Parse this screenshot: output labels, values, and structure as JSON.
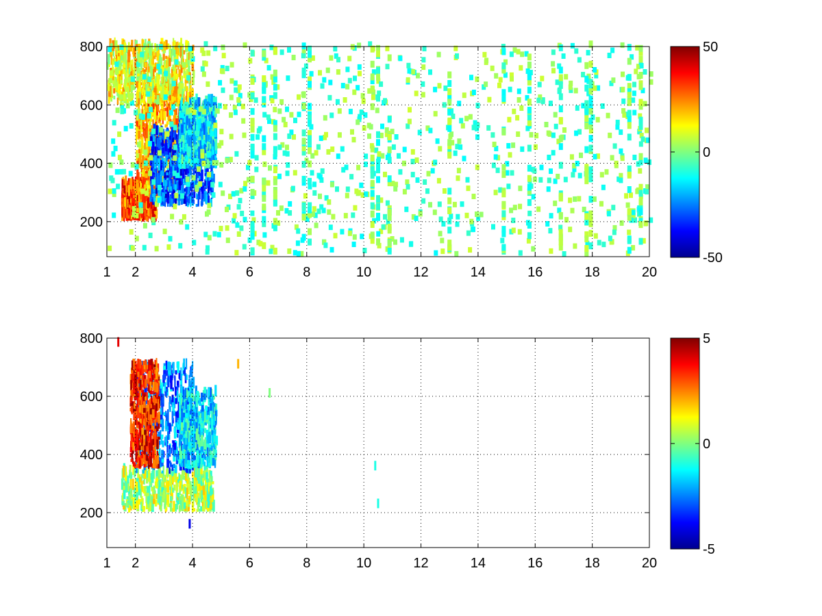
{
  "chart_data": [
    {
      "type": "heatmap",
      "title": "",
      "xlabel": "",
      "ylabel": "",
      "xlim": [
        1,
        20
      ],
      "ylim": [
        80,
        800
      ],
      "x_ticks": [
        1,
        2,
        4,
        6,
        8,
        10,
        12,
        14,
        16,
        18,
        20
      ],
      "y_ticks": [
        200,
        400,
        600,
        800
      ],
      "grid": true,
      "colormap": "jet",
      "colorbar": {
        "range": [
          -50,
          50
        ],
        "ticks": [
          50,
          0,
          -50
        ]
      },
      "description_regions": [
        {
          "x": [
            1.5,
            2.7
          ],
          "y": [
            200,
            320
          ],
          "value": 30
        },
        {
          "x": [
            2.0,
            3.6
          ],
          "y": [
            300,
            650
          ],
          "value": 20
        },
        {
          "x": [
            2.5,
            4.7
          ],
          "y": [
            250,
            500
          ],
          "value": -30
        },
        {
          "x": [
            3.5,
            4.8
          ],
          "y": [
            380,
            600
          ],
          "value": -15
        },
        {
          "x": [
            1.0,
            4.0
          ],
          "y": [
            600,
            800
          ],
          "value": 12
        }
      ],
      "scatter_columns": [
        6.1,
        6.5,
        6.9,
        7.9,
        8.1,
        10.3,
        10.5,
        10.9,
        13.0,
        14.9,
        15.8,
        16.9,
        17.8,
        17.95,
        19.3,
        19.7
      ],
      "scatter_values": [
        -10,
        5
      ]
    },
    {
      "type": "heatmap",
      "title": "",
      "xlabel": "",
      "ylabel": "",
      "xlim": [
        1,
        20
      ],
      "ylim": [
        80,
        800
      ],
      "x_ticks": [
        1,
        2,
        4,
        6,
        8,
        10,
        12,
        14,
        16,
        18,
        20
      ],
      "y_ticks": [
        200,
        400,
        600,
        800
      ],
      "grid": true,
      "colormap": "jet",
      "colorbar": {
        "range": [
          -5,
          5
        ],
        "ticks": [
          5,
          0,
          -5
        ]
      },
      "description_regions": [
        {
          "x": [
            1.5,
            4.7
          ],
          "y": [
            200,
            330
          ],
          "value": 0.5
        },
        {
          "x": [
            2.0,
            4.0
          ],
          "y": [
            330,
            700
          ],
          "value": -2.5
        },
        {
          "x": [
            3.5,
            4.8
          ],
          "y": [
            350,
            600
          ],
          "value": -1.5
        },
        {
          "x": [
            1.8,
            2.8
          ],
          "y": [
            350,
            700
          ],
          "value": 3.5
        }
      ],
      "isolated_points": [
        {
          "x": 1.4,
          "y": 775,
          "value": 4
        },
        {
          "x": 5.6,
          "y": 700,
          "value": 2
        },
        {
          "x": 6.7,
          "y": 600,
          "value": 0
        },
        {
          "x": 10.4,
          "y": 350,
          "value": -1
        },
        {
          "x": 10.5,
          "y": 220,
          "value": -1
        },
        {
          "x": 3.9,
          "y": 150,
          "value": -4
        }
      ]
    }
  ]
}
